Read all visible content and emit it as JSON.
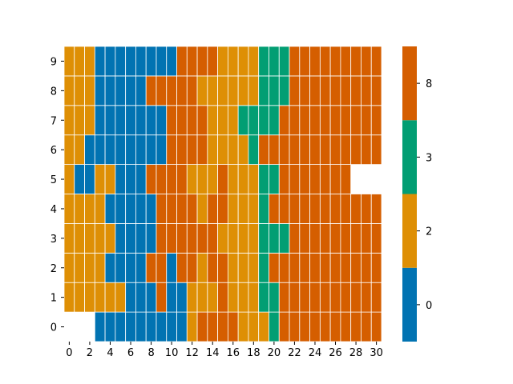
{
  "chart_data": {
    "type": "heatmap",
    "title": "",
    "xlabel": "",
    "ylabel": "",
    "x_ticks": [
      "0",
      "2",
      "4",
      "6",
      "8",
      "10",
      "12",
      "14",
      "16",
      "18",
      "20",
      "22",
      "24",
      "26",
      "28",
      "30"
    ],
    "y_ticks": [
      "0",
      "1",
      "2",
      "3",
      "4",
      "5",
      "6",
      "7",
      "8",
      "9"
    ],
    "colorbar_ticks": [
      "0",
      "2",
      "3",
      "8"
    ],
    "categories": [
      0,
      2,
      3,
      8
    ],
    "colors": {
      "0": "#0173b2",
      "2": "#de8f05",
      "3": "#029e73",
      "8": "#d55e00"
    },
    "grid": true,
    "rows": [
      {
        "y": 0,
        "values": [
          null,
          null,
          null,
          0,
          0,
          0,
          0,
          0,
          0,
          0,
          0,
          0,
          2,
          8,
          8,
          8,
          8,
          2,
          2,
          2,
          3,
          8,
          8,
          8,
          8,
          8,
          8,
          8,
          8,
          8,
          8
        ]
      },
      {
        "y": 1,
        "values": [
          2,
          2,
          2,
          2,
          2,
          2,
          0,
          0,
          0,
          8,
          0,
          0,
          2,
          2,
          2,
          8,
          2,
          2,
          2,
          3,
          3,
          8,
          8,
          8,
          8,
          8,
          8,
          8,
          8,
          8,
          8
        ]
      },
      {
        "y": 2,
        "values": [
          2,
          2,
          2,
          2,
          0,
          0,
          0,
          0,
          8,
          8,
          0,
          8,
          8,
          2,
          8,
          8,
          2,
          2,
          2,
          3,
          8,
          8,
          8,
          8,
          8,
          8,
          8,
          8,
          8,
          8,
          8
        ]
      },
      {
        "y": 3,
        "values": [
          2,
          2,
          2,
          2,
          2,
          0,
          0,
          0,
          0,
          8,
          8,
          8,
          8,
          8,
          8,
          2,
          2,
          2,
          2,
          3,
          3,
          3,
          8,
          8,
          8,
          8,
          8,
          8,
          8,
          8,
          8
        ]
      },
      {
        "y": 4,
        "values": [
          2,
          2,
          2,
          2,
          0,
          0,
          0,
          0,
          0,
          8,
          8,
          8,
          8,
          2,
          8,
          8,
          2,
          2,
          2,
          3,
          8,
          8,
          8,
          8,
          8,
          8,
          8,
          8,
          8,
          8,
          8
        ]
      },
      {
        "y": 5,
        "values": [
          2,
          0,
          0,
          2,
          2,
          0,
          0,
          0,
          8,
          8,
          8,
          8,
          2,
          2,
          2,
          8,
          2,
          2,
          2,
          3,
          3,
          8,
          8,
          8,
          8,
          8,
          8,
          8,
          null,
          null,
          null
        ]
      },
      {
        "y": 6,
        "values": [
          2,
          2,
          0,
          0,
          0,
          0,
          0,
          0,
          0,
          0,
          8,
          8,
          8,
          8,
          2,
          2,
          2,
          2,
          3,
          8,
          8,
          8,
          8,
          8,
          8,
          8,
          8,
          8,
          8,
          8,
          8
        ]
      },
      {
        "y": 7,
        "values": [
          2,
          2,
          2,
          0,
          0,
          0,
          0,
          0,
          0,
          0,
          8,
          8,
          8,
          8,
          2,
          2,
          2,
          3,
          3,
          3,
          3,
          8,
          8,
          8,
          8,
          8,
          8,
          8,
          8,
          8,
          8
        ]
      },
      {
        "y": 8,
        "values": [
          2,
          2,
          2,
          0,
          0,
          0,
          0,
          0,
          8,
          8,
          8,
          8,
          8,
          2,
          2,
          2,
          2,
          2,
          2,
          3,
          3,
          3,
          8,
          8,
          8,
          8,
          8,
          8,
          8,
          8,
          8
        ]
      },
      {
        "y": 9,
        "values": [
          2,
          2,
          2,
          0,
          0,
          0,
          0,
          0,
          0,
          0,
          0,
          8,
          8,
          8,
          8,
          2,
          2,
          2,
          2,
          3,
          3,
          3,
          8,
          8,
          8,
          8,
          8,
          8,
          8,
          8,
          8
        ]
      }
    ]
  }
}
